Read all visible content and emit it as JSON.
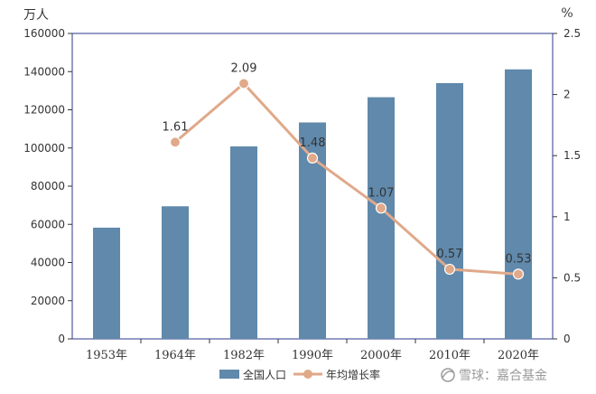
{
  "chart_data": {
    "type": "bar",
    "categories": [
      "1953年",
      "1964年",
      "1982年",
      "1990年",
      "2000年",
      "2010年",
      "2020年"
    ],
    "series": [
      {
        "name": "全国人口",
        "type": "bar",
        "axis": "left",
        "values": [
          58260,
          69458,
          100818,
          113368,
          126583,
          133972,
          141178
        ]
      },
      {
        "name": "年均增长率",
        "type": "line",
        "axis": "right",
        "values": [
          null,
          1.61,
          2.09,
          1.48,
          1.07,
          0.57,
          0.53
        ],
        "labels": [
          null,
          "1.61",
          "2.09",
          "1.48",
          "1.07",
          "0.57",
          "0.53"
        ]
      }
    ],
    "left_axis": {
      "unit": "万人",
      "ylim": [
        0,
        160000
      ],
      "ticks": [
        "0",
        "20000",
        "40000",
        "60000",
        "80000",
        "100000",
        "120000",
        "140000",
        "160000"
      ]
    },
    "right_axis": {
      "unit": "%",
      "ylim": [
        0,
        2.5
      ],
      "ticks": [
        "0",
        "0.5",
        "1",
        "1.5",
        "2",
        "2.5"
      ]
    },
    "legend": "bottom-center",
    "grid": false,
    "colors": {
      "bar": "#6089ab",
      "line": "#e0a98a",
      "plot_border": "#2b3a8c"
    }
  },
  "watermark": {
    "text": "雪球：嘉合基金"
  }
}
